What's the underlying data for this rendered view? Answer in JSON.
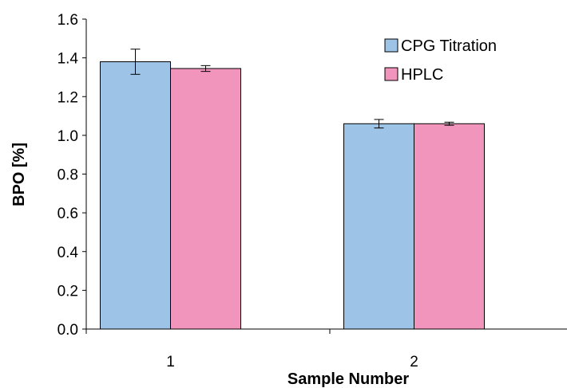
{
  "chart_data": {
    "type": "bar",
    "title": "",
    "xlabel": "Sample Number",
    "ylabel": "BPO [%]",
    "categories": [
      "1",
      "2"
    ],
    "ylim": [
      0.0,
      1.6
    ],
    "yticks": [
      "0.0",
      "0.2",
      "0.4",
      "0.6",
      "0.8",
      "1.0",
      "1.2",
      "1.4",
      "1.6"
    ],
    "grid": false,
    "legend_position": "top-right",
    "series": [
      {
        "name": "CPG Titration",
        "color": "#9dc3e6",
        "values": [
          1.38,
          1.06
        ],
        "errors": [
          0.065,
          0.022
        ]
      },
      {
        "name": "HPLC",
        "color": "#f295bd",
        "values": [
          1.345,
          1.06
        ],
        "errors": [
          0.015,
          0.008
        ]
      }
    ]
  }
}
